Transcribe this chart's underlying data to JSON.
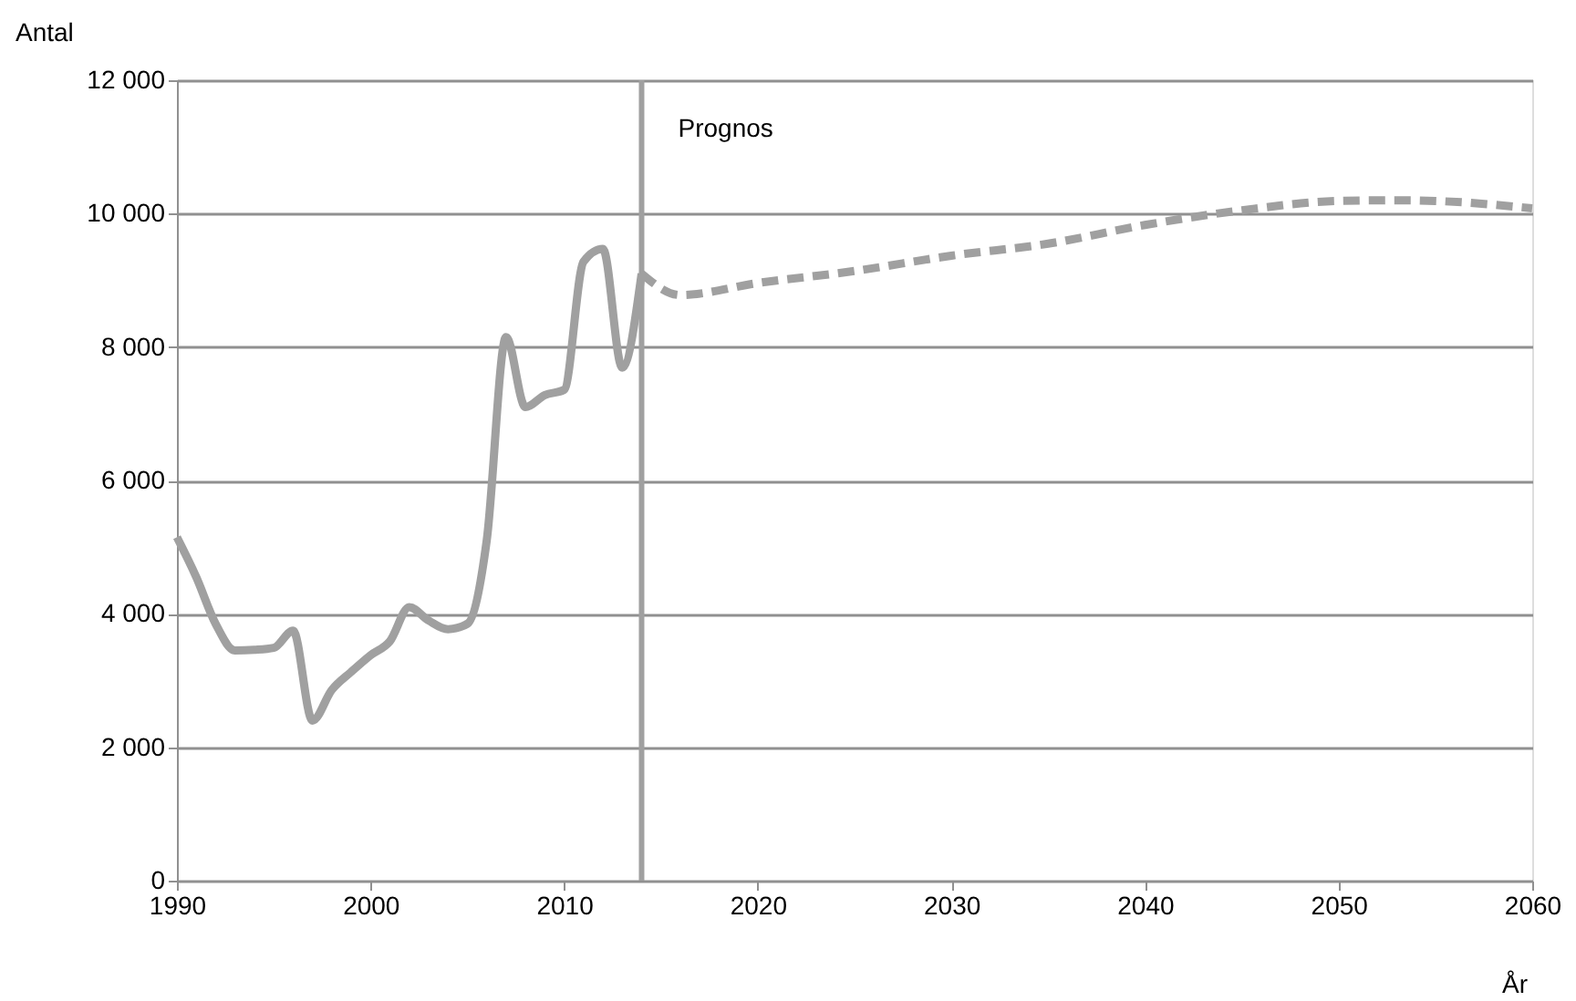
{
  "chart_data": {
    "type": "line",
    "xlabel": "År",
    "ylabel": "Antal",
    "xlim": [
      1990,
      2060
    ],
    "xticks": [
      1990,
      2000,
      2010,
      2020,
      2030,
      2040,
      2050,
      2060
    ],
    "ylim": [
      0,
      12000
    ],
    "yticks": [
      0,
      {
        "value": 2000,
        "label": "2 000"
      },
      {
        "value": 4000,
        "label": "4 000"
      },
      {
        "value": 6000,
        "label": "6 000"
      },
      {
        "value": 8000,
        "label": "8 000"
      },
      {
        "value": 10000,
        "label": "10 000"
      },
      {
        "value": 12000,
        "label": "12 000"
      }
    ],
    "grid": "y",
    "series": [
      {
        "color": "#a0a0a0",
        "line_style": "solid",
        "x": [
          1990,
          1991,
          1992,
          1993,
          1994,
          1995,
          1996,
          1997,
          1998,
          1999,
          2000,
          2001,
          2002,
          2003,
          2004,
          2005,
          2006,
          2007,
          2008,
          2009,
          2010,
          2011,
          2012,
          2013,
          2014
        ],
        "values": [
          5150,
          4550,
          3850,
          3450,
          3460,
          3490,
          3750,
          2400,
          2860,
          3130,
          3380,
          3590,
          4100,
          3900,
          3770,
          3850,
          5100,
          8150,
          7100,
          7280,
          7360,
          9280,
          9470,
          7690,
          9100
        ]
      },
      {
        "color": "#a0a0a0",
        "line_style": "dashed",
        "x": [
          2014,
          2016,
          2020,
          2025,
          2030,
          2035,
          2040,
          2045,
          2050,
          2053,
          2055,
          2060
        ],
        "values": [
          9100,
          8780,
          8960,
          9140,
          9370,
          9550,
          9830,
          10050,
          10190,
          10200,
          10190,
          10080
        ]
      }
    ],
    "ref_lines": [
      {
        "axis": "x",
        "value": 2014,
        "label": "Prognos",
        "color": "#a0a0a0"
      }
    ]
  }
}
